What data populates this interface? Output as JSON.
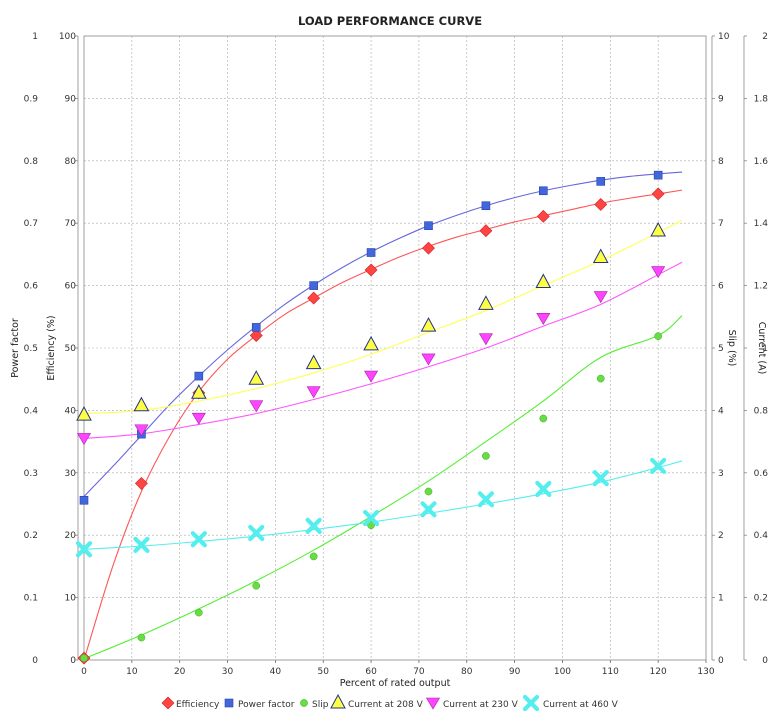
{
  "chart_data": {
    "type": "line",
    "title": "LOAD PERFORMANCE CURVE",
    "xlabel": "Percent of rated output",
    "xlim": [
      0,
      130
    ],
    "x_ticks": [
      "0",
      "10",
      "20",
      "30",
      "40",
      "50",
      "60",
      "70",
      "80",
      "90",
      "100",
      "110",
      "120",
      "130"
    ],
    "grid": true,
    "legend_position": "bottom",
    "axes": [
      {
        "id": "pf",
        "label": "Power factor",
        "side": "left",
        "range": [
          0,
          1
        ],
        "ticks": [
          "0",
          "0.1",
          "0.2",
          "0.3",
          "0.4",
          "0.5",
          "0.6",
          "0.7",
          "0.8",
          "0.9",
          "1"
        ]
      },
      {
        "id": "eff",
        "label": "Efficiency (%)",
        "side": "left",
        "range": [
          0,
          100
        ],
        "ticks": [
          "0",
          "10",
          "20",
          "30",
          "40",
          "50",
          "60",
          "70",
          "80",
          "90",
          "100"
        ]
      },
      {
        "id": "slip",
        "label": "Slip (%)",
        "side": "right",
        "range": [
          0,
          10
        ],
        "ticks": [
          "0",
          "1",
          "2",
          "3",
          "4",
          "5",
          "6",
          "7",
          "8",
          "9",
          "10"
        ]
      },
      {
        "id": "cur",
        "label": "Current (A)",
        "side": "right",
        "range": [
          0,
          2
        ],
        "ticks": [
          "0",
          "0.2",
          "0.4",
          "0.6",
          "0.8",
          "1",
          "1.2",
          "1.4",
          "1.6",
          "1.8",
          "2"
        ]
      }
    ],
    "series": [
      {
        "name": "Efficiency",
        "axis": "eff",
        "color": "#ff4444",
        "marker": "diamond",
        "points": [
          [
            0,
            0.3
          ],
          [
            12,
            28.3
          ],
          [
            24,
            42.8
          ],
          [
            36,
            52
          ],
          [
            48,
            58
          ],
          [
            60,
            62.5
          ],
          [
            72,
            66
          ],
          [
            84,
            68.8
          ],
          [
            96,
            71.1
          ],
          [
            108,
            73
          ],
          [
            120,
            74.7
          ]
        ],
        "curve": [
          [
            0,
            0
          ],
          [
            6,
            15
          ],
          [
            12,
            27
          ],
          [
            18,
            36
          ],
          [
            24,
            43
          ],
          [
            30,
            48.2
          ],
          [
            36,
            52
          ],
          [
            42,
            55.4
          ],
          [
            48,
            58
          ],
          [
            54,
            60.5
          ],
          [
            60,
            62.6
          ],
          [
            66,
            64.6
          ],
          [
            72,
            66.3
          ],
          [
            78,
            67.8
          ],
          [
            84,
            69
          ],
          [
            90,
            70.2
          ],
          [
            96,
            71.2
          ],
          [
            102,
            72.2
          ],
          [
            108,
            73.2
          ],
          [
            114,
            74
          ],
          [
            120,
            74.7
          ],
          [
            125,
            75.3
          ]
        ]
      },
      {
        "name": "Power factor",
        "axis": "pf",
        "color": "#4466dd",
        "marker": "square",
        "points": [
          [
            0,
            0.256
          ],
          [
            12,
            0.362
          ],
          [
            24,
            0.455
          ],
          [
            36,
            0.533
          ],
          [
            48,
            0.6
          ],
          [
            60,
            0.653
          ],
          [
            72,
            0.696
          ],
          [
            84,
            0.728
          ],
          [
            96,
            0.752
          ],
          [
            108,
            0.767
          ],
          [
            120,
            0.777
          ]
        ],
        "curve": [
          [
            0,
            0.262
          ],
          [
            6,
            0.31
          ],
          [
            12,
            0.36
          ],
          [
            18,
            0.41
          ],
          [
            24,
            0.455
          ],
          [
            30,
            0.497
          ],
          [
            36,
            0.535
          ],
          [
            42,
            0.57
          ],
          [
            48,
            0.601
          ],
          [
            54,
            0.629
          ],
          [
            60,
            0.654
          ],
          [
            66,
            0.676
          ],
          [
            72,
            0.696
          ],
          [
            78,
            0.713
          ],
          [
            84,
            0.728
          ],
          [
            90,
            0.741
          ],
          [
            96,
            0.752
          ],
          [
            102,
            0.761
          ],
          [
            108,
            0.769
          ],
          [
            114,
            0.775
          ],
          [
            120,
            0.779
          ],
          [
            125,
            0.782
          ]
        ]
      },
      {
        "name": "Slip",
        "axis": "slip",
        "color": "#66dd44",
        "marker": "circle",
        "points": [
          [
            0,
            0.03
          ],
          [
            12,
            0.36
          ],
          [
            24,
            0.76
          ],
          [
            36,
            1.19
          ],
          [
            48,
            1.66
          ],
          [
            60,
            2.16
          ],
          [
            72,
            2.7
          ],
          [
            84,
            3.27
          ],
          [
            96,
            3.87
          ],
          [
            108,
            4.51
          ],
          [
            120,
            5.19
          ]
        ],
        "curve": [
          [
            0,
            0.02
          ],
          [
            12,
            0.4
          ],
          [
            24,
            0.82
          ],
          [
            36,
            1.27
          ],
          [
            48,
            1.76
          ],
          [
            60,
            2.3
          ],
          [
            72,
            2.87
          ],
          [
            84,
            3.5
          ],
          [
            96,
            4.15
          ],
          [
            108,
            4.85
          ],
          [
            120,
            5.2
          ],
          [
            125,
            5.52
          ]
        ]
      },
      {
        "name": "Current at 208 V",
        "axis": "cur",
        "color": "#ffff44",
        "marker": "triangle-up",
        "points": [
          [
            0,
            0.785
          ],
          [
            12,
            0.815
          ],
          [
            24,
            0.855
          ],
          [
            36,
            0.9
          ],
          [
            48,
            0.95
          ],
          [
            60,
            1.01
          ],
          [
            72,
            1.07
          ],
          [
            84,
            1.14
          ],
          [
            96,
            1.21
          ],
          [
            108,
            1.29
          ],
          [
            120,
            1.375
          ]
        ],
        "curve": [
          [
            0,
            0.79
          ],
          [
            12,
            0.8
          ],
          [
            24,
            0.83
          ],
          [
            36,
            0.87
          ],
          [
            48,
            0.92
          ],
          [
            60,
            0.98
          ],
          [
            72,
            1.05
          ],
          [
            84,
            1.12
          ],
          [
            96,
            1.2
          ],
          [
            108,
            1.28
          ],
          [
            120,
            1.37
          ],
          [
            125,
            1.41
          ]
        ]
      },
      {
        "name": "Current at 230 V",
        "axis": "cur",
        "color": "#ff44ff",
        "marker": "triangle-down",
        "points": [
          [
            0,
            0.71
          ],
          [
            12,
            0.738
          ],
          [
            24,
            0.775
          ],
          [
            36,
            0.815
          ],
          [
            48,
            0.86
          ],
          [
            60,
            0.91
          ],
          [
            72,
            0.965
          ],
          [
            84,
            1.03
          ],
          [
            96,
            1.095
          ],
          [
            108,
            1.165
          ],
          [
            120,
            1.245
          ]
        ],
        "curve": [
          [
            0,
            0.71
          ],
          [
            12,
            0.725
          ],
          [
            24,
            0.755
          ],
          [
            36,
            0.79
          ],
          [
            48,
            0.835
          ],
          [
            60,
            0.885
          ],
          [
            72,
            0.94
          ],
          [
            84,
            1
          ],
          [
            96,
            1.07
          ],
          [
            108,
            1.14
          ],
          [
            120,
            1.235
          ],
          [
            125,
            1.275
          ]
        ]
      },
      {
        "name": "Current at 460 V",
        "axis": "cur",
        "color": "#55eeee",
        "marker": "x",
        "points": [
          [
            0,
            0.355
          ],
          [
            12,
            0.369
          ],
          [
            24,
            0.387
          ],
          [
            36,
            0.407
          ],
          [
            48,
            0.43
          ],
          [
            60,
            0.455
          ],
          [
            72,
            0.483
          ],
          [
            84,
            0.515
          ],
          [
            96,
            0.548
          ],
          [
            108,
            0.583
          ],
          [
            120,
            0.622
          ]
        ],
        "curve": [
          [
            0,
            0.355
          ],
          [
            12,
            0.365
          ],
          [
            24,
            0.38
          ],
          [
            36,
            0.397
          ],
          [
            48,
            0.418
          ],
          [
            60,
            0.442
          ],
          [
            72,
            0.47
          ],
          [
            84,
            0.5
          ],
          [
            96,
            0.533
          ],
          [
            108,
            0.57
          ],
          [
            120,
            0.617
          ],
          [
            125,
            0.638
          ]
        ]
      }
    ]
  }
}
